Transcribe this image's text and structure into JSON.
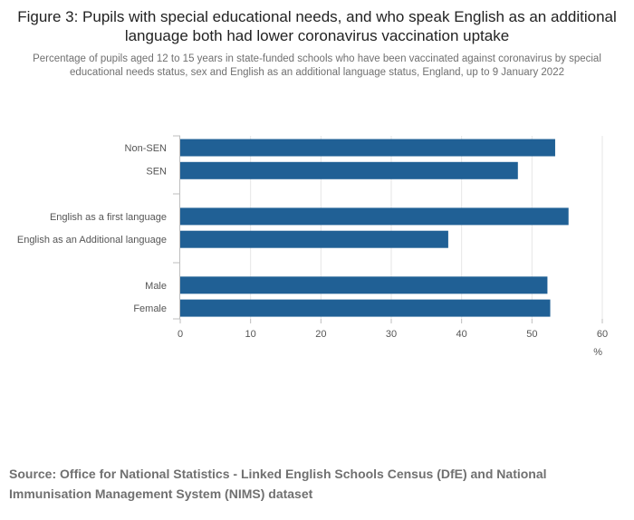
{
  "chart_data": {
    "type": "bar",
    "orientation": "horizontal",
    "title": "Figure 3: Pupils with special educational needs, and who speak English as an additional language both had lower coronavirus vaccination uptake",
    "subtitle": "Percentage of pupils aged 12 to 15 years in state-funded schools who have been vaccinated against coronavirus by special educational needs status, sex and English as an additional language status, England, up to 9 January 2022",
    "categories": [
      "Non-SEN",
      "SEN",
      "English as a first language",
      "English as an Additional language",
      "Male",
      "Female"
    ],
    "groups": [
      [
        0,
        1
      ],
      [
        2,
        3
      ],
      [
        4,
        5
      ]
    ],
    "values": [
      53.3,
      48.0,
      55.2,
      38.1,
      52.2,
      52.6
    ],
    "xlim": [
      0,
      60
    ],
    "xticks": [
      0,
      10,
      20,
      30,
      40,
      50,
      60
    ],
    "xlabel": "%",
    "ylabel": "",
    "bar_color": "#206095",
    "grid": "vertical, light",
    "legend": "none"
  },
  "source": "Source: Office for National Statistics - Linked English Schools Census (DfE) and National Immunisation Management System (NIMS) dataset"
}
